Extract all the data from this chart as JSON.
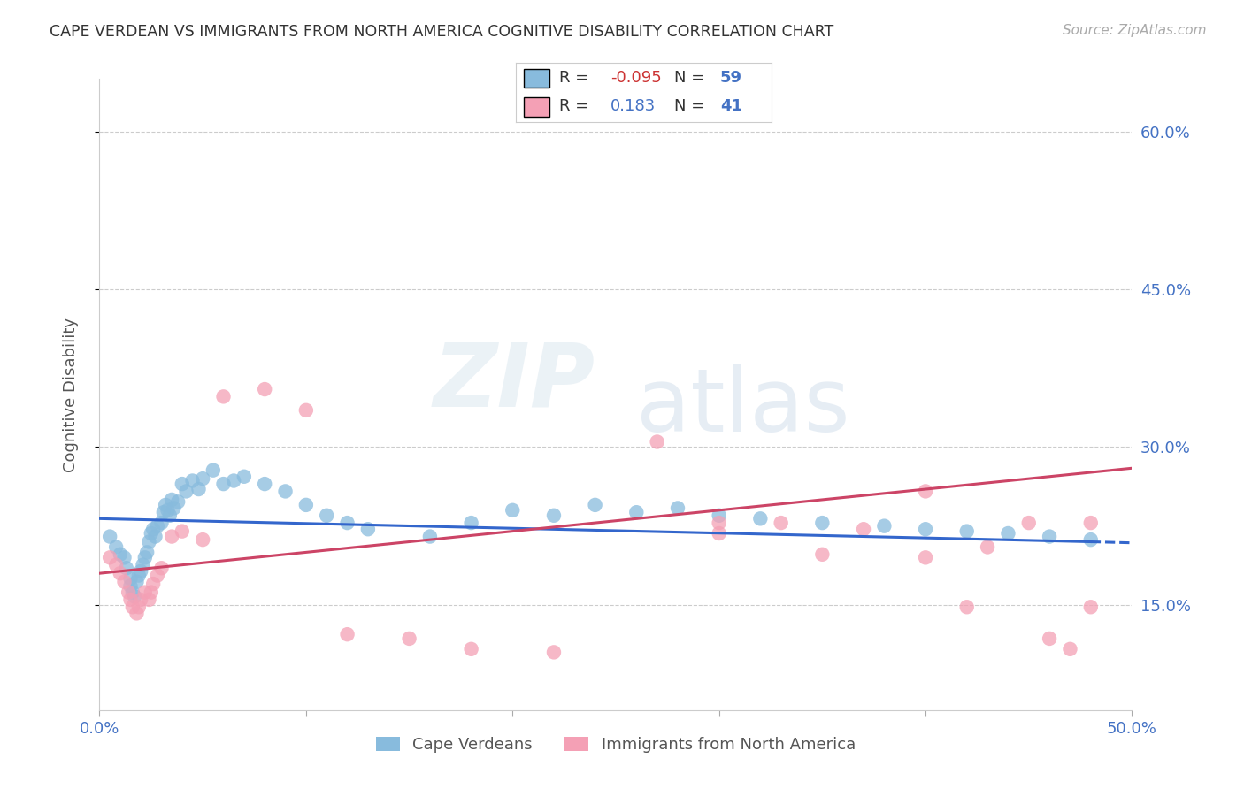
{
  "title": "CAPE VERDEAN VS IMMIGRANTS FROM NORTH AMERICA COGNITIVE DISABILITY CORRELATION CHART",
  "source": "Source: ZipAtlas.com",
  "xlabel": "",
  "ylabel": "Cognitive Disability",
  "xlim": [
    0.0,
    0.5
  ],
  "ylim": [
    0.05,
    0.65
  ],
  "yticks": [
    0.15,
    0.3,
    0.45,
    0.6
  ],
  "ytick_labels": [
    "15.0%",
    "30.0%",
    "45.0%",
    "60.0%"
  ],
  "grid_color": "#cccccc",
  "background_color": "#ffffff",
  "watermark_zip": "ZIP",
  "watermark_atlas": "atlas",
  "series1_color": "#88bbdd",
  "series2_color": "#f4a0b5",
  "line1_color": "#3366cc",
  "line2_color": "#cc4466",
  "series1_label": "Cape Verdeans",
  "series2_label": "Immigrants from North America",
  "legend_text_color": "#4472c4",
  "blue_x": [
    0.005,
    0.008,
    0.01,
    0.012,
    0.013,
    0.015,
    0.015,
    0.016,
    0.017,
    0.018,
    0.019,
    0.02,
    0.021,
    0.022,
    0.023,
    0.024,
    0.025,
    0.026,
    0.027,
    0.028,
    0.03,
    0.031,
    0.032,
    0.033,
    0.034,
    0.035,
    0.036,
    0.038,
    0.04,
    0.042,
    0.045,
    0.048,
    0.05,
    0.055,
    0.06,
    0.065,
    0.07,
    0.08,
    0.09,
    0.1,
    0.11,
    0.12,
    0.13,
    0.16,
    0.18,
    0.2,
    0.22,
    0.24,
    0.26,
    0.28,
    0.3,
    0.32,
    0.35,
    0.38,
    0.4,
    0.42,
    0.44,
    0.46,
    0.48
  ],
  "blue_y": [
    0.215,
    0.205,
    0.198,
    0.195,
    0.185,
    0.175,
    0.168,
    0.162,
    0.158,
    0.172,
    0.178,
    0.182,
    0.188,
    0.195,
    0.2,
    0.21,
    0.218,
    0.222,
    0.215,
    0.225,
    0.228,
    0.238,
    0.245,
    0.24,
    0.235,
    0.25,
    0.242,
    0.248,
    0.265,
    0.258,
    0.268,
    0.26,
    0.27,
    0.278,
    0.265,
    0.268,
    0.272,
    0.265,
    0.258,
    0.245,
    0.235,
    0.228,
    0.222,
    0.215,
    0.228,
    0.24,
    0.235,
    0.245,
    0.238,
    0.242,
    0.235,
    0.232,
    0.228,
    0.225,
    0.222,
    0.22,
    0.218,
    0.215,
    0.212
  ],
  "pink_x": [
    0.005,
    0.008,
    0.01,
    0.012,
    0.014,
    0.015,
    0.016,
    0.018,
    0.019,
    0.02,
    0.022,
    0.024,
    0.025,
    0.026,
    0.028,
    0.03,
    0.035,
    0.04,
    0.05,
    0.06,
    0.08,
    0.1,
    0.12,
    0.15,
    0.18,
    0.22,
    0.27,
    0.3,
    0.33,
    0.37,
    0.4,
    0.42,
    0.45,
    0.47,
    0.48,
    0.3,
    0.35,
    0.4,
    0.43,
    0.46,
    0.48
  ],
  "pink_y": [
    0.195,
    0.188,
    0.18,
    0.172,
    0.162,
    0.155,
    0.148,
    0.142,
    0.148,
    0.155,
    0.162,
    0.155,
    0.162,
    0.17,
    0.178,
    0.185,
    0.215,
    0.22,
    0.212,
    0.348,
    0.355,
    0.335,
    0.122,
    0.118,
    0.108,
    0.105,
    0.305,
    0.228,
    0.228,
    0.222,
    0.258,
    0.148,
    0.228,
    0.108,
    0.228,
    0.218,
    0.198,
    0.195,
    0.205,
    0.118,
    0.148
  ],
  "line1_x_start": 0.0,
  "line1_x_end": 0.48,
  "line1_y_start": 0.232,
  "line1_y_end": 0.21,
  "line1_dash_x_start": 0.48,
  "line1_dash_x_end": 0.5,
  "line1_dash_y_start": 0.21,
  "line1_dash_y_end": 0.209,
  "line2_x_start": 0.0,
  "line2_x_end": 0.5,
  "line2_y_start": 0.18,
  "line2_y_end": 0.28
}
